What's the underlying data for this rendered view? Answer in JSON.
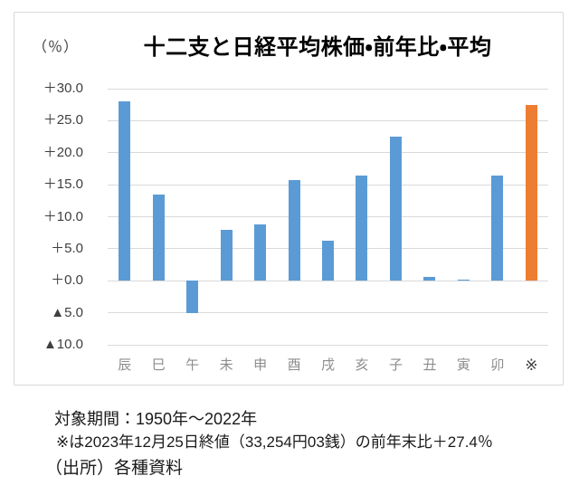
{
  "chart_data": {
    "type": "bar",
    "title": "十二支と日経平均株価・前年比・平均",
    "unit_label": "（％）",
    "categories": [
      "辰",
      "巳",
      "午",
      "未",
      "申",
      "酉",
      "戌",
      "亥",
      "子",
      "丑",
      "寅",
      "卯",
      "※"
    ],
    "values": [
      28.0,
      13.4,
      -5.0,
      7.9,
      8.8,
      15.7,
      6.2,
      16.5,
      22.5,
      0.6,
      0.2,
      16.4,
      27.4
    ],
    "highlight_index": 12,
    "ylim": [
      -10,
      30
    ],
    "grid": true,
    "legend_position": "none",
    "y_ticks": [
      {
        "label": "＋30.0",
        "value": 30
      },
      {
        "label": "＋25.0",
        "value": 25
      },
      {
        "label": "＋20.0",
        "value": 20
      },
      {
        "label": "＋15.0",
        "value": 15
      },
      {
        "label": "＋10.0",
        "value": 10
      },
      {
        "label": "＋5.0",
        "value": 5
      },
      {
        "label": "＋0.0",
        "value": 0
      },
      {
        "label": "▲5.0",
        "value": -5
      },
      {
        "label": "▲10.0",
        "value": -10
      }
    ],
    "colors": {
      "bar_default": "#5B9BD5",
      "bar_highlight": "#ED7D31",
      "gridline": "#D9D9D9",
      "y_tick_label": "#3F3F3F",
      "category_label": "#8C8C8C",
      "highlight_category_label": "#404040"
    }
  },
  "footer": {
    "period": "対象期間：1950年～2022年",
    "note": "※は2023年12月25日終値（33,254円03銭）の前年末比＋27.4％",
    "source": "（出所）各種資料"
  }
}
